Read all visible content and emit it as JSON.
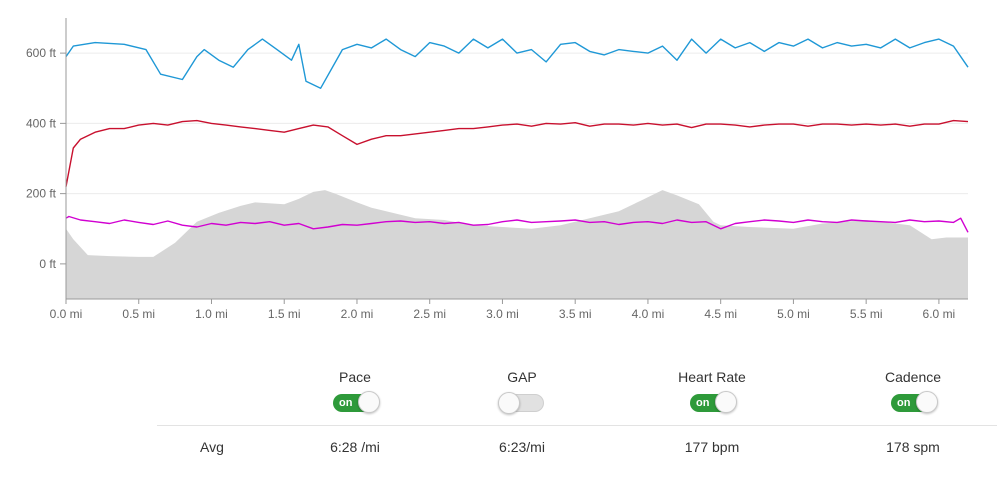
{
  "chart_data": {
    "type": "line",
    "x_unit": "mi",
    "xlim": [
      0,
      6.2
    ],
    "ylim": [
      -100,
      700
    ],
    "x_ticks": [
      "0.0 mi",
      "0.5 mi",
      "1.0 mi",
      "1.5 mi",
      "2.0 mi",
      "2.5 mi",
      "3.0 mi",
      "3.5 mi",
      "4.0 mi",
      "4.5 mi",
      "5.0 mi",
      "5.5 mi",
      "6.0 mi"
    ],
    "x_tick_values": [
      0,
      0.5,
      1.0,
      1.5,
      2.0,
      2.5,
      3.0,
      3.5,
      4.0,
      4.5,
      5.0,
      5.5,
      6.0
    ],
    "y_ticks": [
      "0 ft",
      "200 ft",
      "400 ft",
      "600 ft"
    ],
    "y_tick_values": [
      0,
      200,
      400,
      600
    ],
    "grid": true,
    "series": [
      {
        "kind": "area",
        "color": "#d6d6d6",
        "x": [
          0,
          0.05,
          0.15,
          0.3,
          0.5,
          0.6,
          0.75,
          0.9,
          1.05,
          1.2,
          1.3,
          1.5,
          1.6,
          1.7,
          1.78,
          1.85,
          2.0,
          2.1,
          2.2,
          2.4,
          2.6,
          2.8,
          3.0,
          3.2,
          3.4,
          3.6,
          3.8,
          3.95,
          4.05,
          4.1,
          4.2,
          4.35,
          4.45,
          4.5,
          4.7,
          5.0,
          5.2,
          5.5,
          5.8,
          5.95,
          6.05,
          6.2
        ],
        "y": [
          100,
          70,
          25,
          22,
          20,
          20,
          60,
          120,
          145,
          165,
          175,
          170,
          185,
          205,
          210,
          200,
          175,
          160,
          150,
          130,
          125,
          110,
          105,
          100,
          110,
          130,
          150,
          180,
          200,
          210,
          195,
          170,
          120,
          110,
          105,
          100,
          115,
          125,
          110,
          70,
          75,
          75
        ]
      },
      {
        "kind": "line",
        "color": "#1f98d6",
        "x": [
          0,
          0.05,
          0.2,
          0.4,
          0.55,
          0.65,
          0.8,
          0.9,
          0.95,
          1.05,
          1.15,
          1.25,
          1.35,
          1.45,
          1.55,
          1.6,
          1.65,
          1.75,
          1.9,
          2.0,
          2.1,
          2.2,
          2.3,
          2.4,
          2.5,
          2.6,
          2.7,
          2.8,
          2.9,
          3.0,
          3.1,
          3.2,
          3.3,
          3.4,
          3.5,
          3.6,
          3.7,
          3.8,
          3.9,
          4.0,
          4.1,
          4.2,
          4.3,
          4.4,
          4.5,
          4.6,
          4.7,
          4.8,
          4.9,
          5.0,
          5.1,
          5.2,
          5.3,
          5.4,
          5.5,
          5.6,
          5.7,
          5.8,
          5.9,
          6.0,
          6.1,
          6.2
        ],
        "y": [
          590,
          620,
          630,
          625,
          610,
          540,
          525,
          590,
          610,
          580,
          560,
          610,
          640,
          610,
          580,
          625,
          520,
          500,
          610,
          625,
          615,
          640,
          610,
          590,
          630,
          620,
          600,
          640,
          615,
          640,
          600,
          610,
          575,
          625,
          630,
          605,
          595,
          610,
          605,
          600,
          620,
          580,
          640,
          600,
          640,
          615,
          630,
          605,
          630,
          620,
          640,
          615,
          630,
          620,
          625,
          615,
          640,
          615,
          630,
          640,
          620,
          560
        ]
      },
      {
        "kind": "line",
        "color": "#c8102e",
        "x": [
          0,
          0.05,
          0.1,
          0.2,
          0.3,
          0.4,
          0.5,
          0.6,
          0.7,
          0.8,
          0.9,
          1.0,
          1.1,
          1.2,
          1.3,
          1.4,
          1.5,
          1.6,
          1.7,
          1.8,
          1.9,
          2.0,
          2.1,
          2.2,
          2.3,
          2.4,
          2.5,
          2.6,
          2.7,
          2.8,
          2.9,
          3.0,
          3.1,
          3.2,
          3.3,
          3.4,
          3.5,
          3.6,
          3.7,
          3.8,
          3.9,
          4.0,
          4.1,
          4.2,
          4.3,
          4.4,
          4.5,
          4.6,
          4.7,
          4.8,
          4.9,
          5.0,
          5.1,
          5.2,
          5.3,
          5.4,
          5.5,
          5.6,
          5.7,
          5.8,
          5.9,
          6.0,
          6.1,
          6.2
        ],
        "y": [
          220,
          330,
          355,
          375,
          385,
          385,
          395,
          400,
          395,
          405,
          408,
          400,
          395,
          390,
          385,
          380,
          375,
          385,
          395,
          390,
          365,
          340,
          355,
          365,
          365,
          370,
          375,
          380,
          385,
          385,
          390,
          395,
          398,
          392,
          400,
          398,
          402,
          392,
          398,
          398,
          395,
          400,
          395,
          398,
          388,
          398,
          398,
          395,
          390,
          395,
          398,
          398,
          392,
          398,
          398,
          395,
          398,
          395,
          398,
          392,
          398,
          398,
          408,
          405
        ]
      },
      {
        "kind": "line",
        "color": "#d100d1",
        "x": [
          0,
          0.02,
          0.1,
          0.2,
          0.3,
          0.4,
          0.5,
          0.6,
          0.7,
          0.8,
          0.9,
          1.0,
          1.1,
          1.2,
          1.3,
          1.4,
          1.5,
          1.6,
          1.7,
          1.8,
          1.9,
          2.0,
          2.1,
          2.2,
          2.3,
          2.4,
          2.5,
          2.6,
          2.7,
          2.8,
          2.9,
          3.0,
          3.1,
          3.2,
          3.3,
          3.4,
          3.5,
          3.6,
          3.7,
          3.8,
          3.9,
          4.0,
          4.1,
          4.2,
          4.3,
          4.4,
          4.5,
          4.6,
          4.7,
          4.8,
          4.9,
          5.0,
          5.1,
          5.2,
          5.3,
          5.4,
          5.5,
          5.6,
          5.7,
          5.8,
          5.9,
          6.0,
          6.1,
          6.15,
          6.2
        ],
        "y": [
          130,
          135,
          125,
          120,
          115,
          125,
          118,
          112,
          122,
          110,
          105,
          115,
          110,
          118,
          115,
          120,
          110,
          115,
          100,
          105,
          112,
          110,
          115,
          120,
          122,
          118,
          120,
          115,
          118,
          110,
          112,
          120,
          125,
          118,
          120,
          122,
          125,
          118,
          120,
          112,
          118,
          120,
          115,
          125,
          118,
          120,
          100,
          115,
          120,
          125,
          122,
          118,
          125,
          120,
          118,
          125,
          122,
          120,
          118,
          125,
          120,
          122,
          118,
          130,
          90
        ]
      }
    ]
  },
  "controls": [
    {
      "label": "Pace",
      "state": "on",
      "toggle_text": "on",
      "color": "#2e9a3a"
    },
    {
      "label": "GAP",
      "state": "off",
      "toggle_text": ""
    },
    {
      "label": "Heart Rate",
      "state": "on",
      "toggle_text": "on",
      "color": "#2e9a3a"
    },
    {
      "label": "Cadence",
      "state": "on",
      "toggle_text": "on",
      "color": "#2e9a3a"
    }
  ],
  "avg": {
    "label": "Avg",
    "pace": "6:28 /mi",
    "gap": "6:23/mi",
    "heart_rate": "177 bpm",
    "cadence": "178 spm"
  }
}
